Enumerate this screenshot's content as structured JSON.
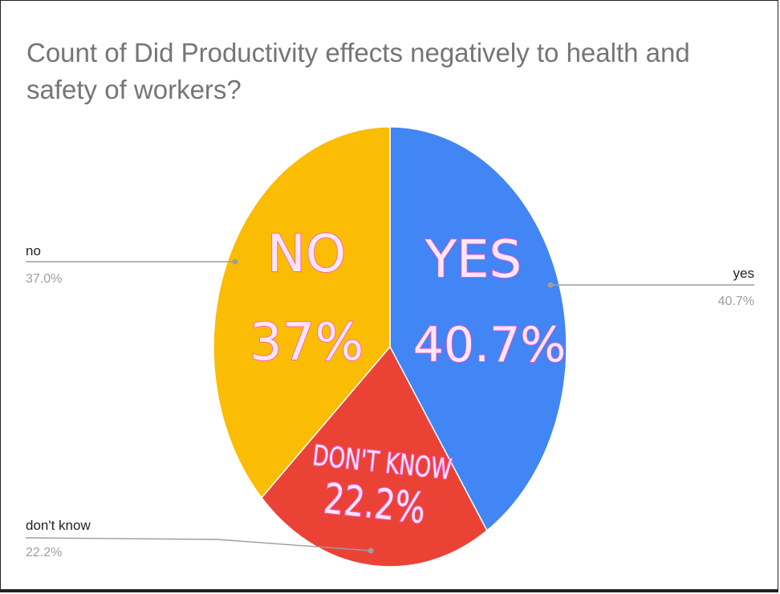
{
  "chart_data": {
    "type": "pie",
    "title": "Count of Did Productivity effects negatively to health and safety of workers?",
    "slices": [
      {
        "name": "yes",
        "value": 40.7,
        "pct_label": "40.7%",
        "color": "#4285F4",
        "inner_name": "YES",
        "inner_value": "40.7%"
      },
      {
        "name": "don't know",
        "value": 22.2,
        "pct_label": "22.2%",
        "color": "#EA4335",
        "inner_name": "DON'T KNOW",
        "inner_value": "22.2%"
      },
      {
        "name": "no",
        "value": 37.0,
        "pct_label": "37.0%",
        "color": "#FBBC04",
        "inner_name": "NO",
        "inner_value": "37%"
      }
    ]
  }
}
